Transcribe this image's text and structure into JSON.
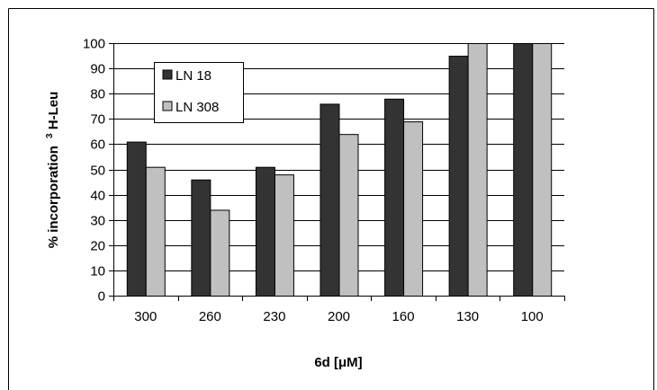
{
  "chart_data": {
    "type": "bar",
    "categories": [
      "300",
      "260",
      "230",
      "200",
      "160",
      "130",
      "100"
    ],
    "series": [
      {
        "name": "LN 18",
        "values": [
          61,
          46,
          51,
          76,
          78,
          95,
          100
        ],
        "color": "#333333"
      },
      {
        "name": "LN 308",
        "values": [
          51,
          34,
          48,
          64,
          69,
          100,
          100
        ],
        "color": "#c0c0c0"
      }
    ],
    "title": "",
    "xlabel": "6d [μM]",
    "ylabel": "% incorporation",
    "ylabel_superscript": "3",
    "ylabel_suffix": "H-Leu",
    "ylim": [
      0,
      100
    ],
    "yticks": [
      0,
      10,
      20,
      30,
      40,
      50,
      60,
      70,
      80,
      90,
      100
    ],
    "grid": true,
    "legend_position": "top-left"
  }
}
